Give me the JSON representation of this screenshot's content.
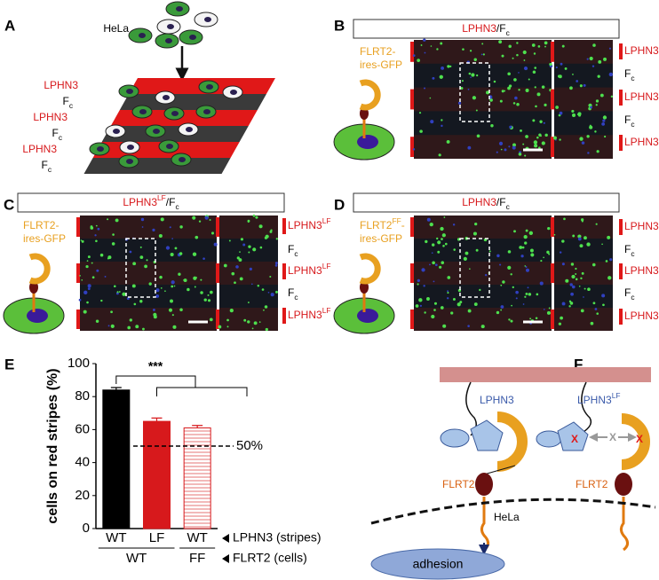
{
  "panel_labels": [
    "A",
    "B",
    "C",
    "D",
    "E",
    "F"
  ],
  "panel_a": {
    "cells_label": "HeLa",
    "stripes": [
      [
        {
          "text": "LPHN3",
          "color": "#d7191c"
        }
      ],
      [
        {
          "text": "F"
        },
        {
          "text": "c",
          "sub": true
        }
      ],
      [
        {
          "text": "LPHN3",
          "color": "#d7191c"
        }
      ],
      [
        {
          "text": "F"
        },
        {
          "text": "c",
          "sub": true
        }
      ],
      [
        {
          "text": "LPHN3",
          "color": "#d7191c"
        }
      ],
      [
        {
          "text": "F"
        },
        {
          "text": "c",
          "sub": true
        }
      ]
    ]
  },
  "panel_b": {
    "title": [
      {
        "text": "LPHN3",
        "color": "#d7191c"
      },
      {
        "text": "/F"
      },
      {
        "text": "c",
        "sub": true
      }
    ],
    "cell_label": [
      [
        {
          "text": "FLRT2-"
        }
      ],
      [
        {
          "text": "ires-GFP"
        }
      ]
    ],
    "stripes": [
      [
        {
          "text": "LPHN3",
          "color": "#d7191c"
        }
      ],
      [
        {
          "text": "F"
        },
        {
          "text": "c",
          "sub": true
        }
      ],
      [
        {
          "text": "LPHN3",
          "color": "#d7191c"
        }
      ],
      [
        {
          "text": "F"
        },
        {
          "text": "c",
          "sub": true
        }
      ],
      [
        {
          "text": "LPHN3",
          "color": "#d7191c"
        }
      ]
    ]
  },
  "panel_c": {
    "title": [
      {
        "text": "LPHN3",
        "color": "#d7191c"
      },
      {
        "text": "LF",
        "sup": true,
        "color": "#d7191c"
      },
      {
        "text": "/F"
      },
      {
        "text": "c",
        "sub": true
      }
    ],
    "cell_label": [
      [
        {
          "text": "FLRT2-"
        }
      ],
      [
        {
          "text": "ires-GFP"
        }
      ]
    ],
    "stripes": [
      [
        {
          "text": "LPHN3",
          "color": "#d7191c"
        },
        {
          "text": "LF",
          "sup": true,
          "color": "#d7191c"
        }
      ],
      [
        {
          "text": "F"
        },
        {
          "text": "c",
          "sub": true
        }
      ],
      [
        {
          "text": "LPHN3",
          "color": "#d7191c"
        },
        {
          "text": "LF",
          "sup": true,
          "color": "#d7191c"
        }
      ],
      [
        {
          "text": "F"
        },
        {
          "text": "c",
          "sub": true
        }
      ],
      [
        {
          "text": "LPHN3",
          "color": "#d7191c"
        },
        {
          "text": "LF",
          "sup": true,
          "color": "#d7191c"
        }
      ]
    ]
  },
  "panel_d": {
    "title": [
      {
        "text": "LPHN3",
        "color": "#d7191c"
      },
      {
        "text": "/F"
      },
      {
        "text": "c",
        "sub": true
      }
    ],
    "cell_label": [
      [
        {
          "text": "FLRT2"
        },
        {
          "text": "FF",
          "sup": true
        },
        {
          "text": "-"
        }
      ],
      [
        {
          "text": "ires-GFP"
        }
      ]
    ],
    "stripes": [
      [
        {
          "text": "LPHN3",
          "color": "#d7191c"
        }
      ],
      [
        {
          "text": "F"
        },
        {
          "text": "c",
          "sub": true
        }
      ],
      [
        {
          "text": "LPHN3",
          "color": "#d7191c"
        }
      ],
      [
        {
          "text": "F"
        },
        {
          "text": "c",
          "sub": true
        }
      ],
      [
        {
          "text": "LPHN3",
          "color": "#d7191c"
        }
      ]
    ]
  },
  "chart_data": {
    "type": "bar",
    "y_label": "cells on red stripes (%)",
    "categories": [
      "WT",
      "LF",
      "WT"
    ],
    "values": [
      84,
      65,
      61
    ],
    "errors": [
      1.5,
      2,
      1.5
    ],
    "colors": [
      "#000000",
      "#d7191c",
      "#d7191c"
    ],
    "hatched": [
      false,
      false,
      true
    ],
    "groups": [
      "WT",
      "FF"
    ],
    "group_of": [
      0,
      0,
      1
    ],
    "row_labels": [
      "LPHN3 (stripes)",
      "FLRT2 (cells)"
    ],
    "ylim": [
      0,
      100
    ],
    "yticks": [
      0,
      20,
      40,
      60,
      80,
      100
    ],
    "reference_line": {
      "value": 50,
      "label": "50%"
    },
    "significance": "***"
  },
  "panel_f": {
    "receptor": "LPHN3",
    "receptor_mutant": [
      {
        "text": "LPHN3"
      },
      {
        "text": "LF",
        "sup": true
      }
    ],
    "ligand_left": "FLRT2",
    "ligand_right": "FLRT2",
    "block_marks": [
      "X",
      "X",
      "X"
    ],
    "membrane": "HeLa",
    "outcome": "adhesion"
  }
}
